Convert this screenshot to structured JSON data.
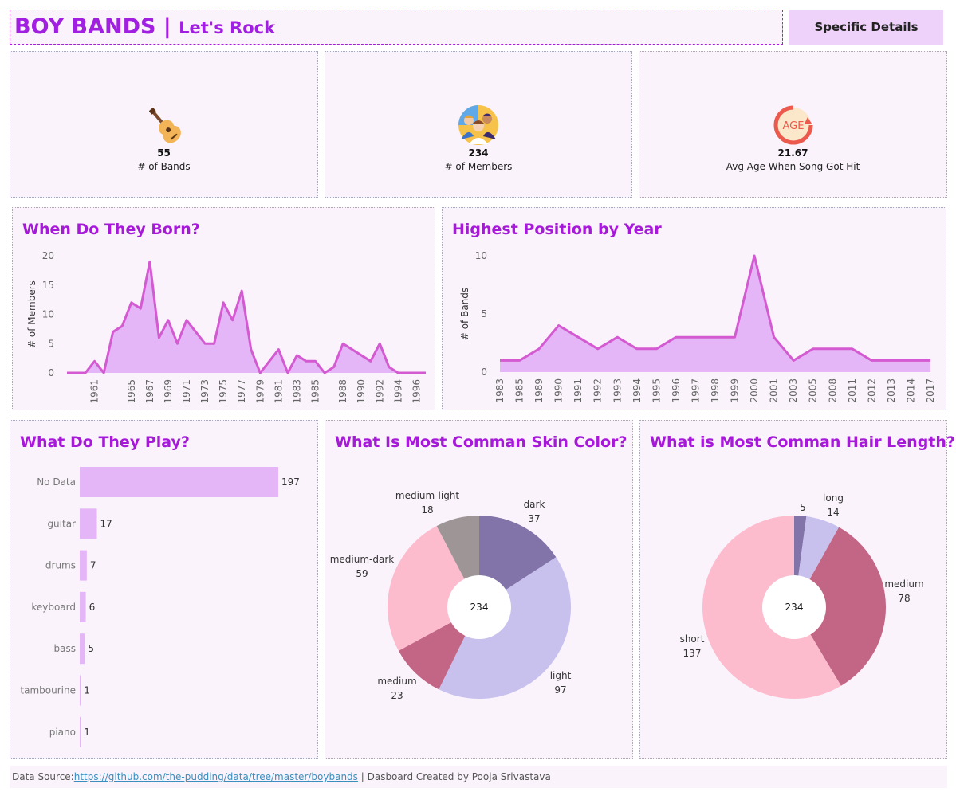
{
  "header": {
    "title": "BOY BANDS",
    "separator": "|",
    "subtitle": "Let's Rock",
    "details_button": "Specific Details"
  },
  "kpis": [
    {
      "icon": "guitar-icon",
      "value": "55",
      "label": "# of Bands"
    },
    {
      "icon": "people-icon",
      "value": "234",
      "label": "# of Members"
    },
    {
      "icon": "age-icon",
      "value": "21.67",
      "label": "Avg Age When Song Got Hit",
      "icon_text": "AGE"
    }
  ],
  "colors": {
    "accent": "#a619d8",
    "area_fill": "#e4b5f7",
    "area_line": "#d35ad0",
    "bar_fill": "#e4b5f7"
  },
  "chart_data": [
    {
      "type": "area",
      "title": "When Do They Born?",
      "ylabel": "# of Members",
      "xlabel": "",
      "ylim": [
        0,
        20
      ],
      "yticks": [
        0,
        5,
        10,
        15,
        20
      ],
      "x_ticks": [
        "1961",
        "1965",
        "1967",
        "1969",
        "1971",
        "1973",
        "1975",
        "1977",
        "1979",
        "1981",
        "1983",
        "1985",
        "1988",
        "1990",
        "1992",
        "1994",
        "1996"
      ],
      "x": [
        1958,
        1959,
        1960,
        1961,
        1962,
        1963,
        1964,
        1965,
        1966,
        1967,
        1968,
        1969,
        1970,
        1971,
        1972,
        1973,
        1974,
        1975,
        1976,
        1977,
        1978,
        1979,
        1980,
        1981,
        1982,
        1983,
        1984,
        1985,
        1986,
        1987,
        1988,
        1989,
        1990,
        1991,
        1992,
        1993,
        1994,
        1995,
        1996,
        1997
      ],
      "values": [
        0,
        0,
        0,
        2,
        0,
        7,
        8,
        12,
        11,
        19,
        6,
        9,
        5,
        9,
        7,
        5,
        5,
        12,
        9,
        14,
        4,
        0,
        2,
        4,
        0,
        3,
        2,
        2,
        0,
        1,
        5,
        4,
        3,
        2,
        5,
        1,
        0,
        0,
        0,
        0
      ]
    },
    {
      "type": "area",
      "title": "Highest Position by Year",
      "ylabel": "# of Bands",
      "xlabel": "",
      "ylim": [
        0,
        10
      ],
      "yticks": [
        0,
        5,
        10
      ],
      "categories": [
        "1983",
        "1985",
        "1989",
        "1990",
        "1991",
        "1992",
        "1993",
        "1994",
        "1995",
        "1996",
        "1997",
        "1998",
        "1999",
        "2000",
        "2001",
        "2003",
        "2005",
        "2008",
        "2011",
        "2012",
        "2013",
        "2014",
        "2017"
      ],
      "values": [
        1,
        1,
        2,
        4,
        3,
        2,
        3,
        2,
        2,
        3,
        3,
        3,
        3,
        10,
        3,
        1,
        2,
        2,
        2,
        1,
        1,
        1,
        1
      ]
    },
    {
      "type": "bar",
      "title": "What Do They Play?",
      "orientation": "horizontal",
      "categories": [
        "No Data",
        "guitar",
        "drums",
        "keyboard",
        "bass",
        "tambourine",
        "piano"
      ],
      "values": [
        197,
        17,
        7,
        6,
        5,
        1,
        1
      ]
    },
    {
      "type": "pie",
      "title": "What Is Most Comman Skin Color?",
      "center_label": "234",
      "slices": [
        {
          "label": "dark",
          "value": 37,
          "color": "#8274a9"
        },
        {
          "label": "light",
          "value": 97,
          "color": "#c8c1ee"
        },
        {
          "label": "medium",
          "value": 23,
          "color": "#c36585"
        },
        {
          "label": "medium-dark",
          "value": 59,
          "color": "#fdbcce"
        },
        {
          "label": "medium-light",
          "value": 18,
          "color": "#9e9596"
        }
      ]
    },
    {
      "type": "pie",
      "title": "What is Most Comman Hair Length?",
      "center_label": "234",
      "slices": [
        {
          "label": "",
          "value": 5,
          "color": "#8274a9"
        },
        {
          "label": "long",
          "value": 14,
          "color": "#c8c1ee"
        },
        {
          "label": "medium",
          "value": 78,
          "color": "#c36585"
        },
        {
          "label": "short",
          "value": 137,
          "color": "#fdbcce"
        }
      ]
    }
  ],
  "footer": {
    "prefix": "Data Source:",
    "link": "https://github.com/the-pudding/data/tree/master/boybands",
    "suffix": " | Dasboard Created by Pooja Srivastava"
  }
}
